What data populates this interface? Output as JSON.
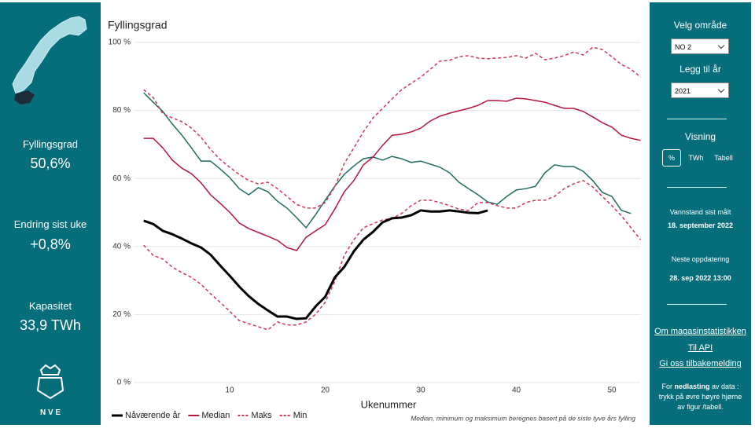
{
  "left": {
    "kpis": [
      {
        "label": "Fyllingsgrad",
        "value": "50,6%"
      },
      {
        "label": "Endring sist uke",
        "value": "+0,8%"
      },
      {
        "label": "Kapasitet",
        "value": "33,9 TWh"
      }
    ],
    "logo": "N V E"
  },
  "right": {
    "area_label": "Velg område",
    "area": "NO 2",
    "year_label": "Legg til år",
    "year": "2021",
    "view_label": "Visning",
    "view_options": [
      "%",
      "TWh",
      "Tabell"
    ],
    "measured_label": "Vannstand sist målt",
    "measured": "18. september 2022",
    "next_label": "Neste oppdatering",
    "next": "28. sep 2022 13:00",
    "links": [
      "Om magasinstatistikken",
      "Til API",
      "Gi oss tilbakemelding"
    ],
    "download": [
      "For ",
      "nedlasting",
      " av data : trykk på øvre høyre hjørne av figur /tabell."
    ]
  },
  "chart_data": {
    "type": "line",
    "title": "Fyllingsgrad",
    "xlabel": "Ukenummer",
    "note": "Median, minimum og maksimum beregnes basert på de siste tyve års fylling",
    "x": [
      1,
      2,
      3,
      4,
      5,
      6,
      7,
      8,
      9,
      10,
      11,
      12,
      13,
      14,
      15,
      16,
      17,
      18,
      19,
      20,
      21,
      22,
      23,
      24,
      25,
      26,
      27,
      28,
      29,
      30,
      31,
      32,
      33,
      34,
      35,
      36,
      37,
      38,
      39,
      40,
      41,
      42,
      43,
      44,
      45,
      46,
      47,
      48,
      49,
      50,
      51,
      52,
      53
    ],
    "xlim": [
      0,
      53
    ],
    "xticks": [
      10,
      20,
      30,
      40,
      50
    ],
    "ylim": [
      0,
      100
    ],
    "yticks": [
      {
        "value": 0,
        "label": "0 %"
      },
      {
        "value": 20,
        "label": "20 %"
      },
      {
        "value": 40,
        "label": "40 %"
      },
      {
        "value": 60,
        "label": "60 %"
      },
      {
        "value": 80,
        "label": "80 %"
      },
      {
        "value": 100,
        "label": "100 %"
      }
    ],
    "grid": true,
    "series": [
      {
        "color": "#1f6b5f",
        "values": [
          85.2,
          82.4,
          79.7,
          76,
          72.7,
          69,
          65.1,
          65.1,
          62.8,
          60.3,
          57,
          55.2,
          57.3,
          56.1,
          53.3,
          51.3,
          48.5,
          45.5,
          49.4,
          53.6,
          57.7,
          61.2,
          63.7,
          65.8,
          66.3,
          65.4,
          66.5,
          65.8,
          64.7,
          65.1,
          64.2,
          63.3,
          61.7,
          58.9,
          57,
          55.2,
          53.1,
          52.4,
          54.7,
          56.6,
          57,
          57.7,
          61.7,
          64,
          63.5,
          63.5,
          62.1,
          59.4,
          55.9,
          54.7,
          50.6,
          49.7,
          null
        ]
      },
      {
        "name": "Median",
        "color": "#b5173c",
        "dash": false,
        "values": [
          71.8,
          71.8,
          69,
          65.4,
          63,
          61.4,
          58.7,
          55.2,
          52.7,
          50.1,
          46.9,
          45.3,
          44.1,
          43,
          41.8,
          39.7,
          38.8,
          42.7,
          44.6,
          46.4,
          51,
          56.1,
          59.4,
          64,
          66.3,
          69.7,
          72.7,
          73,
          73.7,
          74.8,
          76.9,
          78.3,
          79.2,
          79.9,
          80.6,
          81.5,
          82.9,
          82.9,
          82.7,
          83.6,
          83.4,
          82.9,
          82.4,
          81.5,
          80.6,
          80.6,
          79.7,
          78.1,
          76.4,
          75.1,
          72.7,
          71.8,
          71.2
        ]
      },
      {
        "name": "Maks",
        "color": "#cc3853",
        "dash": true,
        "values": [
          86.1,
          83.8,
          79,
          77.8,
          76.7,
          74.8,
          72.1,
          68.6,
          65.6,
          63.3,
          61.2,
          59.4,
          58.4,
          58.9,
          57,
          54.7,
          52.4,
          51.3,
          51.3,
          52.9,
          57.5,
          64.4,
          69,
          73.7,
          77.8,
          80.6,
          83.4,
          86.1,
          88,
          89.8,
          92.1,
          94.5,
          94.7,
          95.8,
          96.1,
          95.4,
          95.2,
          95.4,
          95.6,
          96.1,
          95.4,
          96.8,
          94.9,
          95.4,
          96.1,
          97.2,
          96.3,
          98.6,
          97.9,
          95.8,
          93.5,
          92.1,
          89.8
        ]
      },
      {
        "name": "Min",
        "color": "#cc3853",
        "dash": true,
        "values": [
          40.4,
          37.4,
          36.3,
          33.9,
          32.3,
          30.9,
          28.9,
          26.1,
          23.6,
          21,
          18.2,
          17.3,
          16.4,
          15.5,
          17.8,
          16.9,
          16.9,
          17.8,
          20.1,
          23.6,
          29.8,
          37.4,
          42,
          45.5,
          46.7,
          47.8,
          48.3,
          49.7,
          52,
          53.6,
          53.6,
          52.9,
          52,
          51,
          50.6,
          52.9,
          52.9,
          52,
          51.3,
          51.3,
          52.9,
          53.6,
          53.6,
          54.7,
          57,
          58.4,
          59.4,
          57.5,
          54.7,
          52,
          49,
          45.5,
          42
        ]
      },
      {
        "name": "Nåværende år",
        "color": "#000000",
        "dash": false,
        "width": 3,
        "values": [
          47.6,
          46.6,
          44.6,
          43.6,
          42.3,
          40.9,
          39.7,
          37.6,
          34.4,
          31.4,
          28.2,
          25.4,
          23.1,
          21.2,
          19.4,
          19.4,
          18.7,
          18.9,
          22.4,
          25.2,
          30.9,
          34,
          38.6,
          42,
          44.3,
          47.1,
          48.3,
          48.5,
          49.2,
          50.6,
          50.3,
          50.3,
          50.6,
          50.3,
          49.9,
          49.8,
          50.6,
          null,
          null,
          null,
          null,
          null,
          null,
          null,
          null,
          null,
          null,
          null,
          null,
          null,
          null,
          null,
          null
        ]
      }
    ],
    "legend_order": [
      4,
      1,
      2,
      3
    ]
  }
}
